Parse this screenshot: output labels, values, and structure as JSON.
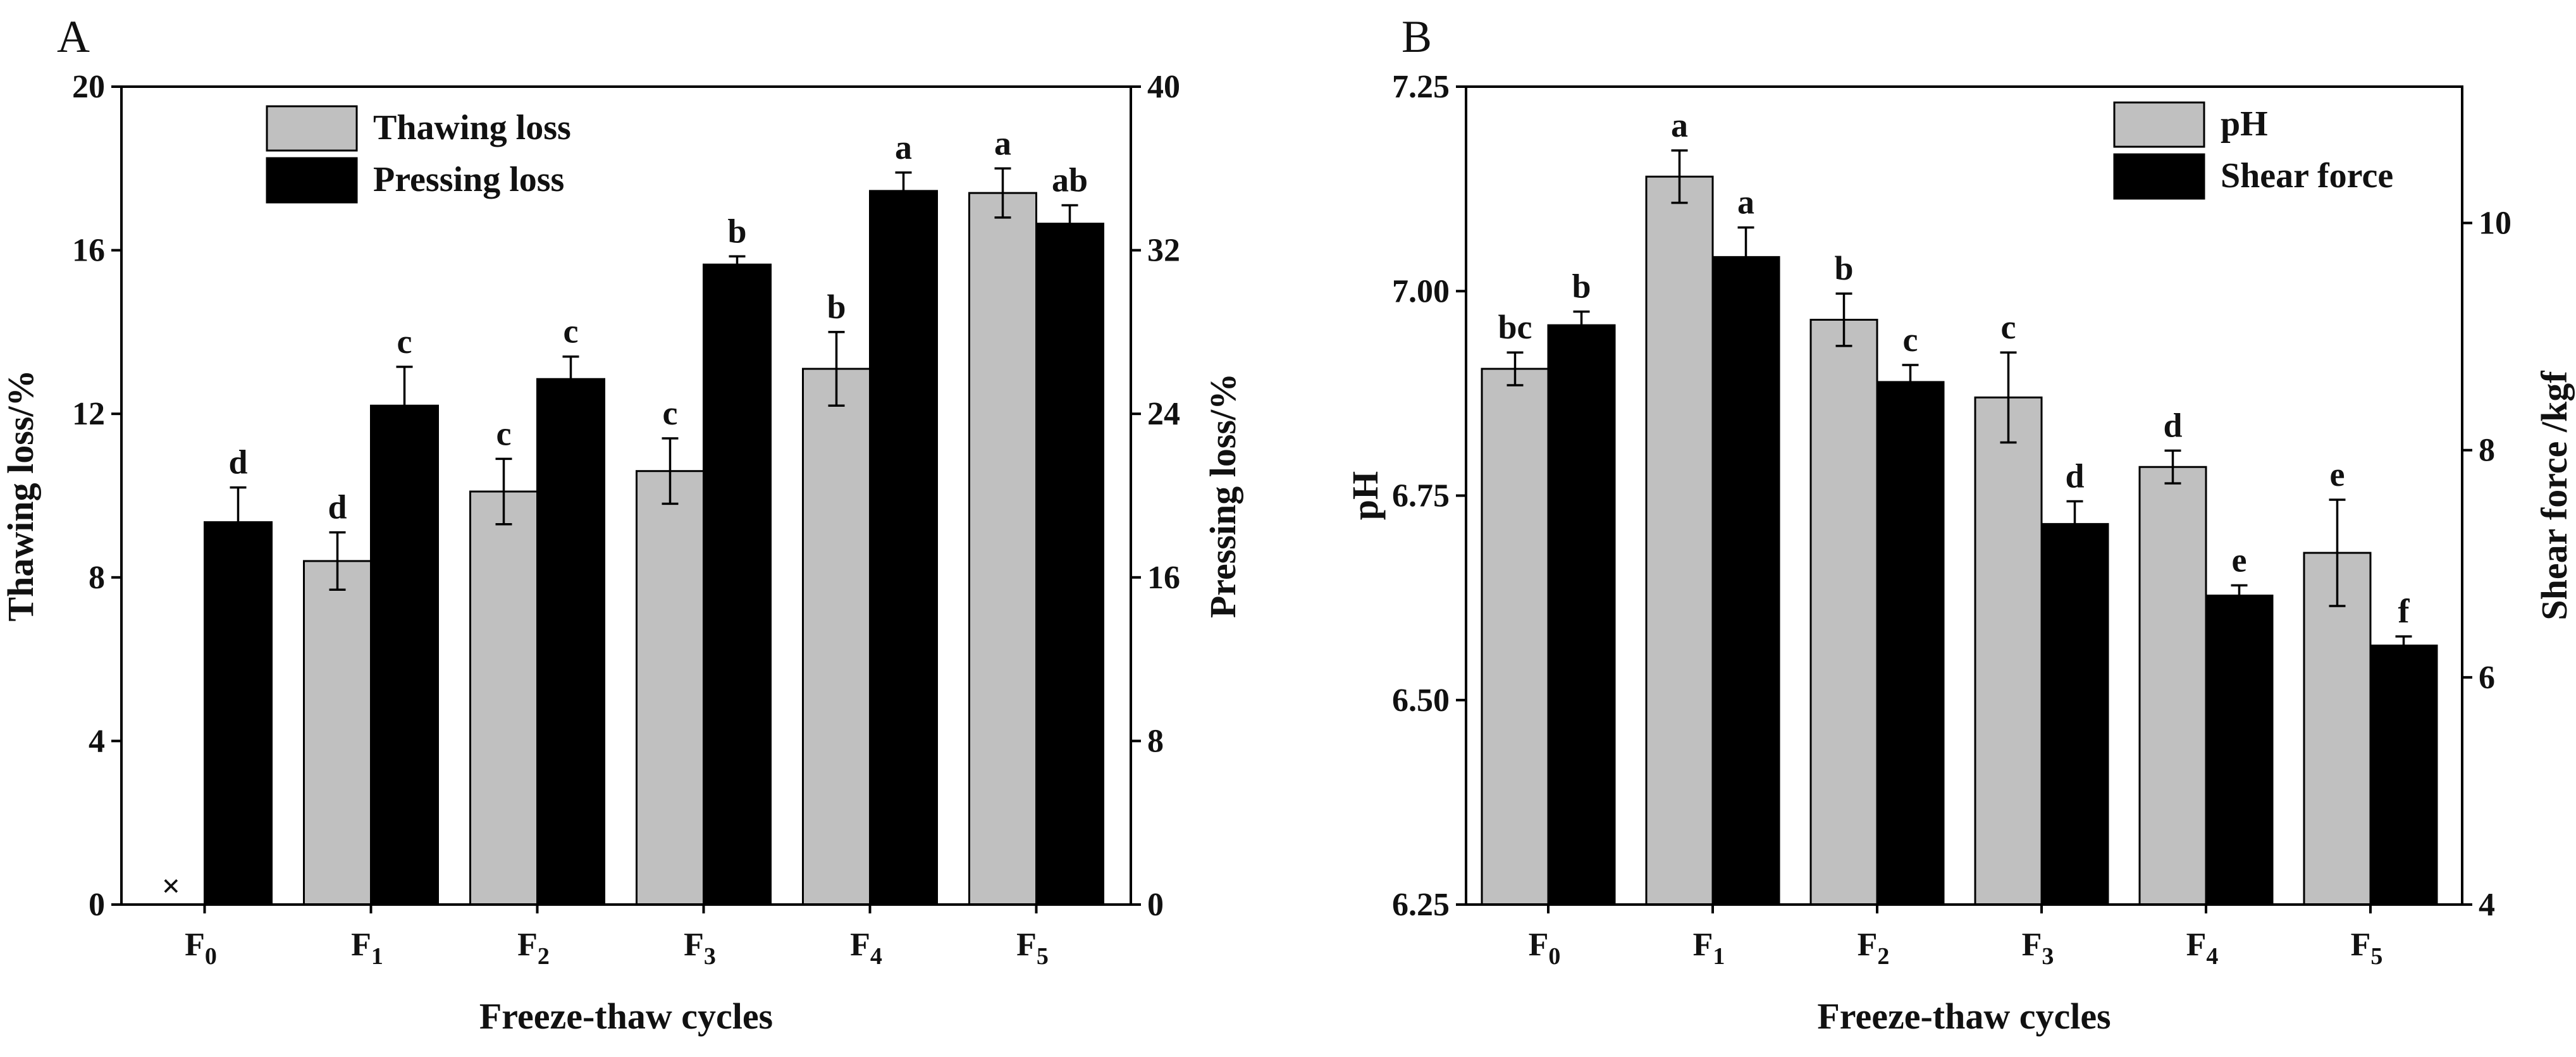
{
  "chart_data": [
    {
      "panel": "A",
      "type": "bar",
      "xlabel": "Freeze-thaw cycles",
      "categories": [
        "F0",
        "F1",
        "F2",
        "F3",
        "F4",
        "F5"
      ],
      "category_labels": [
        {
          "main": "F",
          "sub": "0"
        },
        {
          "main": "F",
          "sub": "1"
        },
        {
          "main": "F",
          "sub": "2"
        },
        {
          "main": "F",
          "sub": "3"
        },
        {
          "main": "F",
          "sub": "4"
        },
        {
          "main": "F",
          "sub": "5"
        }
      ],
      "left_axis": {
        "label": "Thawing loss/%",
        "ylim": [
          0,
          20
        ],
        "ticks": [
          "0",
          "4",
          "8",
          "12",
          "16",
          "20"
        ],
        "tick_values": [
          0,
          4,
          8,
          12,
          16,
          20
        ]
      },
      "right_axis": {
        "label": "Pressing loss/%",
        "ylim": [
          0,
          40
        ],
        "ticks": [
          "0",
          "8",
          "16",
          "24",
          "32",
          "40"
        ],
        "tick_values": [
          0,
          8,
          16,
          24,
          32,
          40
        ]
      },
      "legend_position": "top-left",
      "missing_marker": "×",
      "series": [
        {
          "name": "Thawing loss",
          "axis": "left",
          "color": "#c0c0c0",
          "values": [
            null,
            8.4,
            10.1,
            10.6,
            13.1,
            17.4
          ],
          "errors": [
            null,
            0.7,
            0.8,
            0.8,
            0.9,
            0.6
          ],
          "letters": [
            "",
            "d",
            "c",
            "c",
            "b",
            "a"
          ]
        },
        {
          "name": "Pressing loss",
          "axis": "right",
          "color": "#000000",
          "values": [
            18.7,
            24.4,
            25.7,
            31.3,
            34.9,
            33.3
          ],
          "errors": [
            1.7,
            1.9,
            1.1,
            0.4,
            0.9,
            0.9
          ],
          "letters": [
            "d",
            "c",
            "c",
            "b",
            "a",
            "ab"
          ]
        }
      ]
    },
    {
      "panel": "B",
      "type": "bar",
      "xlabel": "Freeze-thaw cycles",
      "categories": [
        "F0",
        "F1",
        "F2",
        "F3",
        "F4",
        "F5"
      ],
      "category_labels": [
        {
          "main": "F",
          "sub": "0"
        },
        {
          "main": "F",
          "sub": "1"
        },
        {
          "main": "F",
          "sub": "2"
        },
        {
          "main": "F",
          "sub": "3"
        },
        {
          "main": "F",
          "sub": "4"
        },
        {
          "main": "F",
          "sub": "5"
        }
      ],
      "left_axis": {
        "label": "pH",
        "ylim": [
          6.25,
          7.25
        ],
        "ticks": [
          "6.25",
          "6.50",
          "6.75",
          "7.00",
          "7.25"
        ],
        "tick_values": [
          6.25,
          6.5,
          6.75,
          7.0,
          7.25
        ]
      },
      "right_axis": {
        "label": "Shear force /kgf",
        "ylim": [
          4,
          11.2
        ],
        "ticks": [
          "4",
          "6",
          "8",
          "10"
        ],
        "tick_values": [
          4,
          6,
          8,
          10
        ]
      },
      "legend_position": "top-right",
      "series": [
        {
          "name": "pH",
          "axis": "left",
          "color": "#c0c0c0",
          "values": [
            6.905,
            7.14,
            6.965,
            6.87,
            6.785,
            6.68
          ],
          "errors": [
            0.02,
            0.032,
            0.032,
            0.055,
            0.02,
            0.065
          ],
          "letters": [
            "bc",
            "a",
            "b",
            "c",
            "d",
            "e"
          ]
        },
        {
          "name": "Shear force",
          "axis": "right",
          "color": "#000000",
          "values": [
            9.1,
            9.7,
            8.6,
            7.35,
            6.72,
            6.28
          ],
          "errors": [
            0.12,
            0.26,
            0.15,
            0.2,
            0.09,
            0.08
          ],
          "letters": [
            "b",
            "a",
            "c",
            "d",
            "e",
            "f"
          ]
        }
      ]
    }
  ]
}
